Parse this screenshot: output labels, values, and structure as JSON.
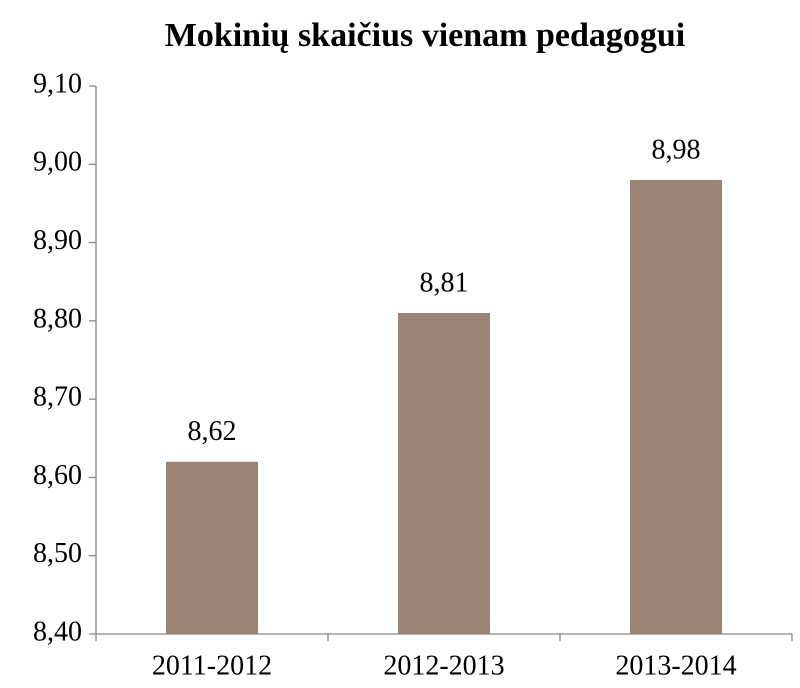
{
  "chart_data": {
    "type": "bar",
    "title": "Mokinių skaičius vienam pedagogui",
    "categories": [
      "2011-2012",
      "2012-2013",
      "2013-2014"
    ],
    "values": [
      8.62,
      8.81,
      8.98
    ],
    "value_labels": [
      "8,62",
      "8,81",
      "8,98"
    ],
    "color": "#9a8577",
    "ylim": [
      8.4,
      9.1
    ],
    "yticks": [
      {
        "value": 8.4,
        "label": "8,40"
      },
      {
        "value": 8.5,
        "label": "8,50"
      },
      {
        "value": 8.6,
        "label": "8,60"
      },
      {
        "value": 8.7,
        "label": "8,70"
      },
      {
        "value": 8.8,
        "label": "8,80"
      },
      {
        "value": 8.9,
        "label": "8,90"
      },
      {
        "value": 9.0,
        "label": "9,00"
      },
      {
        "value": 9.1,
        "label": "9,10"
      }
    ],
    "grid": false
  }
}
